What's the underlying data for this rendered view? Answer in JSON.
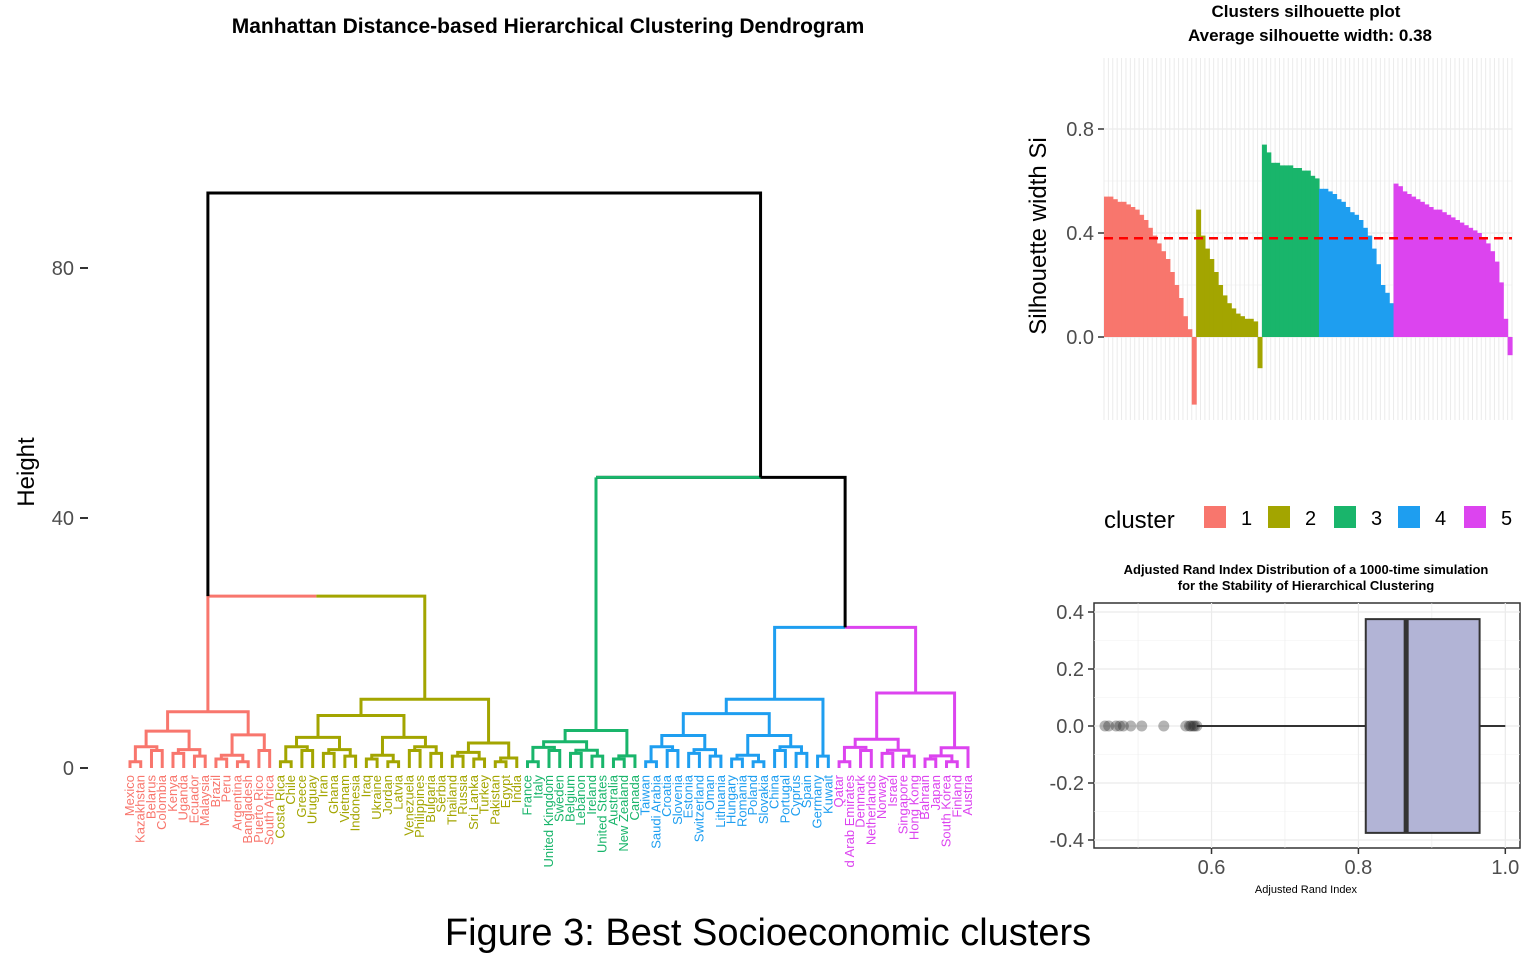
{
  "figure": {
    "caption": "Figure 3: Best Socioeconomic clusters"
  },
  "colors": {
    "c1": "#f8766d",
    "c2": "#a3a500",
    "c3": "#19b56b",
    "c4": "#1e9ef0",
    "c5": "#dc44ef",
    "root": "#000000",
    "mean": "#ff0000",
    "box": "#b2b4d6"
  },
  "chart_data": [
    {
      "type": "dendrogram",
      "title": "Manhattan Distance-based Hierarchical Clustering Dendrogram",
      "ylabel": "Height",
      "ylim": [
        0,
        92
      ],
      "yticks": [
        "0",
        "40",
        "80"
      ],
      "root_height": 92,
      "merges": [
        {
          "name": "3+4+5",
          "height": 47
        },
        {
          "name": "1+2",
          "height": 28
        },
        {
          "name": "4+5",
          "height": 23
        },
        {
          "name": "2",
          "height": 28
        },
        {
          "name": "3",
          "height": 47
        },
        {
          "name": "4",
          "height": 12
        },
        {
          "name": "5",
          "height": 12
        }
      ],
      "leaves": [
        {
          "cluster": "1",
          "items": [
            "Mexico",
            "Kazakhstan",
            "Belarus",
            "Colombia",
            "Kenya",
            "Uganda",
            "Ecuador",
            "Malaysia",
            "Brazil",
            "Peru",
            "Argentina",
            "Bangladesh",
            "Puerto Rico",
            "South Africa"
          ]
        },
        {
          "cluster": "2",
          "items": [
            "Costa Rica",
            "Chile",
            "Greece",
            "Uruguay",
            "Iran",
            "Ghana",
            "Vietnam",
            "Indonesia",
            "Iraq",
            "Ukraine",
            "Jordan",
            "Latvia",
            "Venezuela",
            "Philippines",
            "Bulgaria",
            "Serbia",
            "Thailand",
            "Russia",
            "Sri Lanka",
            "Turkey",
            "Pakistan",
            "Egypt",
            "India"
          ]
        },
        {
          "cluster": "3",
          "items": [
            "France",
            "Italy",
            "United Kingdom",
            "Sweden",
            "Belgium",
            "Lebanon",
            "Ireland",
            "United States",
            "Australia",
            "New Zealand",
            "Canada"
          ]
        },
        {
          "cluster": "4",
          "items": [
            "Taiwan",
            "Saudi Arabia",
            "Croatia",
            "Slovenia",
            "Estonia",
            "Switzerland",
            "Oman",
            "Lithuania",
            "Hungary",
            "Romania",
            "Poland",
            "Slovakia",
            "China",
            "Portugal",
            "Cyprus",
            "Spain",
            "Germany",
            "Kuwait"
          ]
        },
        {
          "cluster": "5",
          "items": [
            "Qatar",
            "d Arab Emirates",
            "Denmark",
            "Netherlands",
            "Norway",
            "Israel",
            "Singapore",
            "Hong Kong",
            "Bahrain",
            "Japan",
            "South Korea",
            "Finland",
            "Austria"
          ]
        }
      ]
    },
    {
      "type": "bar",
      "title": "Clusters silhouette plot",
      "subtitle": "Average silhouette width: 0.38",
      "ylabel": "Silhouette width Si",
      "ylim": [
        -0.3,
        1.0
      ],
      "yticks": [
        "0.0",
        "0.4",
        "0.8"
      ],
      "average": 0.38,
      "legend": {
        "title": "cluster",
        "placement": "bottom",
        "entries": [
          "1",
          "2",
          "3",
          "4",
          "5"
        ]
      },
      "series": [
        {
          "name": "1",
          "values": [
            0.54,
            0.54,
            0.53,
            0.52,
            0.52,
            0.51,
            0.5,
            0.49,
            0.47,
            0.45,
            0.42,
            0.39,
            0.36,
            0.33,
            0.3,
            0.25,
            0.2,
            0.15,
            0.08,
            0.03,
            -0.26
          ]
        },
        {
          "name": "2",
          "values": [
            0.49,
            0.39,
            0.34,
            0.3,
            0.25,
            0.2,
            0.16,
            0.13,
            0.11,
            0.09,
            0.08,
            0.07,
            0.07,
            0.06,
            -0.12
          ]
        },
        {
          "name": "3",
          "values": [
            0.74,
            0.71,
            0.67,
            0.67,
            0.66,
            0.66,
            0.66,
            0.65,
            0.65,
            0.64,
            0.64,
            0.62,
            0.61
          ]
        },
        {
          "name": "4",
          "values": [
            0.57,
            0.57,
            0.56,
            0.55,
            0.53,
            0.52,
            0.5,
            0.48,
            0.47,
            0.45,
            0.42,
            0.39,
            0.34,
            0.28,
            0.2,
            0.17,
            0.13
          ]
        },
        {
          "name": "5",
          "values": [
            0.59,
            0.58,
            0.56,
            0.55,
            0.54,
            0.53,
            0.52,
            0.51,
            0.5,
            0.49,
            0.49,
            0.48,
            0.47,
            0.46,
            0.45,
            0.44,
            0.43,
            0.42,
            0.41,
            0.4,
            0.38,
            0.36,
            0.33,
            0.29,
            0.21,
            0.07,
            -0.07
          ]
        }
      ]
    },
    {
      "type": "box",
      "title": "Adjusted Rand Index Distribution of a 1000-time simulation",
      "subtitle": "for the Stability of Hierarchical Clustering",
      "xlabel": "Adjusted Rand Index",
      "xlim": [
        0.44,
        1.02
      ],
      "ylim": [
        -0.42,
        0.42
      ],
      "xticks": [
        "0.6",
        "0.8",
        "1.0"
      ],
      "yticks": [
        "0.4",
        "0.2",
        "0.0",
        "-0.2",
        "-0.4"
      ],
      "box": {
        "q1": 0.81,
        "median": 0.865,
        "q3": 0.965,
        "whisker_low": 0.58,
        "whisker_high": 1.0,
        "y_low": -0.375,
        "y_high": 0.375
      },
      "outliers": [
        0.455,
        0.46,
        0.47,
        0.475,
        0.48,
        0.49,
        0.505,
        0.535,
        0.565,
        0.57,
        0.572,
        0.575,
        0.577,
        0.58
      ]
    }
  ]
}
